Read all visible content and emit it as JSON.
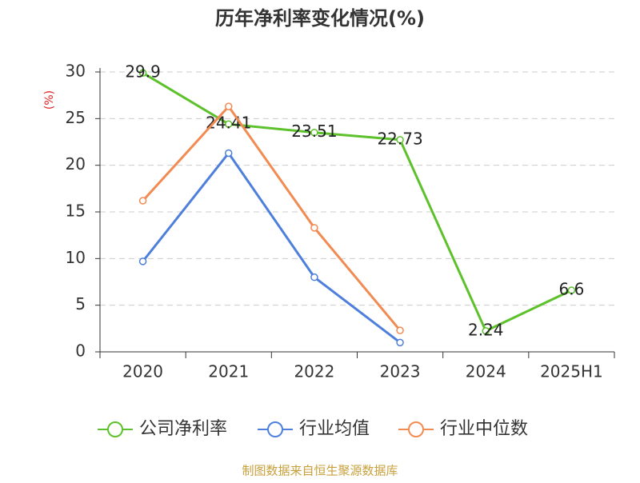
{
  "chart_data": {
    "type": "line",
    "title": "历年净利率变化情况(%)",
    "y_label": "(%)",
    "categories": [
      "2020",
      "2021",
      "2022",
      "2023",
      "2024",
      "2025H1"
    ],
    "series": [
      {
        "name": "公司净利率",
        "color": "#5cc12a",
        "values": [
          29.9,
          24.41,
          23.51,
          22.73,
          2.24,
          6.6
        ],
        "show_labels": true
      },
      {
        "name": "行业均值",
        "color": "#4e7fdc",
        "values": [
          9.7,
          21.3,
          8.0,
          1.0,
          null,
          null
        ],
        "show_labels": false
      },
      {
        "name": "行业中位数",
        "color": "#f28b52",
        "values": [
          16.2,
          26.3,
          13.3,
          2.3,
          null,
          null
        ],
        "show_labels": false
      }
    ],
    "ylim": [
      0,
      30
    ],
    "yticks": [
      0,
      5,
      10,
      15,
      20,
      25,
      30
    ],
    "grid": true,
    "source": "制图数据来自恒生聚源数据库"
  }
}
